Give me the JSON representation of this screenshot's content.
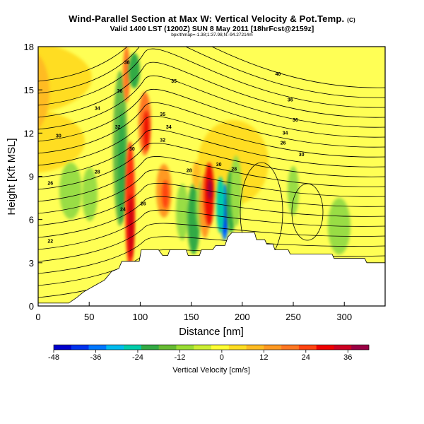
{
  "chart_data": {
    "type": "heatmap",
    "title": "Wind-Parallel Section at Max W: Vertical Velocity & Pot.Temp.",
    "title_mark": "(C)",
    "subtitle": "Valid 1400 LST (1200Z) SUN 8 May 2011 [18hrFcst@2159z]",
    "subtitle2": "bpx/thmap=-1.38;1:37.98,N:-94.27214m",
    "xlabel": "Distance [nm]",
    "ylabel": "Height [Kft MSL]",
    "xlim": [
      0,
      340
    ],
    "ylim": [
      0,
      18
    ],
    "xticks": [
      "0",
      "50",
      "100",
      "150",
      "200",
      "250",
      "300"
    ],
    "yticks": [
      "0",
      "3",
      "6",
      "9",
      "12",
      "15",
      "18"
    ],
    "colorbar": {
      "label": "Vertical Velocity [cm/s]",
      "range": [
        -48,
        42
      ],
      "ticks": [
        "-48",
        "-36",
        "-24",
        "-12",
        "0",
        "12",
        "24",
        "36"
      ],
      "colors": [
        "#0000cc",
        "#0033ee",
        "#0077ff",
        "#00bbee",
        "#00ccaa",
        "#33aa44",
        "#66bb33",
        "#99dd33",
        "#ccee33",
        "#ffff33",
        "#ffdd22",
        "#ffbb22",
        "#ff9922",
        "#ff7722",
        "#ff4411",
        "#ee0000",
        "#cc0022",
        "#990044"
      ]
    },
    "contour_labels": [
      {
        "text": "40",
        "x": 235,
        "y": 16.0
      },
      {
        "text": "38",
        "x": 87,
        "y": 16.8
      },
      {
        "text": "36",
        "x": 80,
        "y": 14.8
      },
      {
        "text": "35",
        "x": 133,
        "y": 15.5
      },
      {
        "text": "36",
        "x": 247,
        "y": 14.2
      },
      {
        "text": "34",
        "x": 58,
        "y": 13.6
      },
      {
        "text": "35",
        "x": 122,
        "y": 13.2
      },
      {
        "text": "36",
        "x": 252,
        "y": 12.8
      },
      {
        "text": "32",
        "x": 78,
        "y": 12.3
      },
      {
        "text": "34",
        "x": 128,
        "y": 12.3
      },
      {
        "text": "34",
        "x": 242,
        "y": 11.9
      },
      {
        "text": "30",
        "x": 20,
        "y": 11.7
      },
      {
        "text": "32",
        "x": 122,
        "y": 11.4
      },
      {
        "text": "26",
        "x": 240,
        "y": 11.2
      },
      {
        "text": "30",
        "x": 92,
        "y": 10.8
      },
      {
        "text": "30",
        "x": 258,
        "y": 10.4
      },
      {
        "text": "28",
        "x": 58,
        "y": 9.2
      },
      {
        "text": "28",
        "x": 148,
        "y": 9.3
      },
      {
        "text": "28",
        "x": 192,
        "y": 9.4
      },
      {
        "text": "30",
        "x": 177,
        "y": 9.7
      },
      {
        "text": "26",
        "x": 12,
        "y": 8.4
      },
      {
        "text": "26",
        "x": 103,
        "y": 7.0
      },
      {
        "text": "24",
        "x": 83,
        "y": 6.6
      },
      {
        "text": "22",
        "x": 12,
        "y": 4.4
      }
    ]
  }
}
